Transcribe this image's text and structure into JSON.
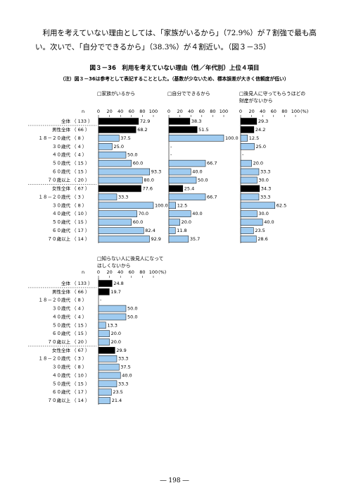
{
  "paragraph": "利用を考えていない理由としては、「家族がいるから」（72.9%）が７割強で最も高い。次いで、「自分でできるから」（38.3%）が４割近い。（図３－35）",
  "figure_title": "図３－36　利用を考えていない理由（性／年代別）上位４項目",
  "note": "（注）図３－36は参考として表記することとした。（基数が少ないため、標本誤差が大きく信頼度が低い）",
  "page_number": "― 198 ―",
  "chart_data": [
    {
      "type": "bar",
      "title": "□家族がいるから",
      "n_header": "n",
      "categories": [
        "全体",
        "男性全体",
        "１８－２０歳代",
        "３０歳代",
        "４０歳代",
        "５０歳代",
        "６０歳代",
        "７０歳以上",
        "女性全体",
        "１８－２０歳代",
        "３０歳代",
        "４０歳代",
        "５０歳代",
        "６０歳代",
        "７０歳以上"
      ],
      "n_labels": [
        "（ 133 ）",
        "（ 66 ）",
        "（ 8 ）",
        "（ 4 ）",
        "（ 4 ）",
        "（ 15 ）",
        "（ 15 ）",
        "（ 20 ）",
        "（ 67 ）",
        "（ 3 ）",
        "（ 8 ）",
        "（ 10 ）",
        "（ 15 ）",
        "（ 17 ）",
        "（ 14 ）"
      ],
      "values": [
        72.9,
        68.2,
        37.5,
        25.0,
        50.0,
        60.0,
        93.3,
        80.0,
        77.6,
        33.3,
        100.0,
        70.0,
        60.0,
        82.4,
        92.9
      ],
      "value_labels": [
        "72.9",
        "68.2",
        "37.5",
        "25.0",
        "50.0",
        "60.0",
        "93.3",
        "80.0",
        "77.6",
        "33.3",
        "100.0",
        "70.0",
        "60.0",
        "82.4",
        "92.9"
      ],
      "colors": [
        "#000000",
        "#000000",
        "#9fcbf0",
        "#9fcbf0",
        "#9fcbf0",
        "#9fcbf0",
        "#9fcbf0",
        "#9fcbf0",
        "#000000",
        "#9fcbf0",
        "#9fcbf0",
        "#9fcbf0",
        "#9fcbf0",
        "#9fcbf0",
        "#9fcbf0"
      ],
      "xlim": [
        0,
        100
      ],
      "xticks": [
        0,
        20,
        40,
        60,
        80,
        100
      ]
    },
    {
      "type": "bar",
      "title": "□自分でできるから",
      "values": [
        38.3,
        51.5,
        100.0,
        0,
        0,
        66.7,
        40.0,
        50.0,
        25.4,
        66.7,
        12.5,
        40.0,
        20.0,
        11.8,
        35.7
      ],
      "value_labels": [
        "38.3",
        "51.5",
        "100.0",
        "-",
        "-",
        "66.7",
        "40.0",
        "50.0",
        "25.4",
        "66.7",
        "12.5",
        "40.0",
        "20.0",
        "11.8",
        "35.7"
      ],
      "colors": [
        "#000000",
        "#000000",
        "#9fcbf0",
        "#9fcbf0",
        "#9fcbf0",
        "#9fcbf0",
        "#9fcbf0",
        "#9fcbf0",
        "#000000",
        "#9fcbf0",
        "#9fcbf0",
        "#9fcbf0",
        "#9fcbf0",
        "#9fcbf0",
        "#9fcbf0"
      ],
      "xlim": [
        0,
        100
      ],
      "xticks": [
        0,
        20,
        40,
        60,
        80,
        100
      ]
    },
    {
      "type": "bar",
      "title": "□後見人に守ってもらうほどの財産がないから",
      "values": [
        29.3,
        24.2,
        12.5,
        25.0,
        0,
        20.0,
        33.3,
        30.0,
        34.3,
        33.3,
        62.5,
        30.0,
        40.0,
        23.5,
        28.6
      ],
      "value_labels": [
        "29.3",
        "24.2",
        "12.5",
        "25.0",
        "-",
        "20.0",
        "33.3",
        "30.0",
        "34.3",
        "33.3",
        "62.5",
        "30.0",
        "40.0",
        "23.5",
        "28.6"
      ],
      "colors": [
        "#000000",
        "#000000",
        "#9fcbf0",
        "#9fcbf0",
        "#9fcbf0",
        "#9fcbf0",
        "#9fcbf0",
        "#9fcbf0",
        "#000000",
        "#9fcbf0",
        "#9fcbf0",
        "#9fcbf0",
        "#9fcbf0",
        "#9fcbf0",
        "#9fcbf0"
      ],
      "xlim": [
        0,
        100
      ],
      "xticks": [
        0,
        20,
        40,
        60,
        80,
        100
      ],
      "x_unit": "(%)"
    },
    {
      "type": "bar",
      "title": "□知らない人に後見人になってほしくないから",
      "n_header": "n",
      "categories": [
        "全体",
        "男性全体",
        "１８－２０歳代",
        "３０歳代",
        "４０歳代",
        "５０歳代",
        "６０歳代",
        "７０歳以上",
        "女性全体",
        "１８－２０歳代",
        "３０歳代",
        "４０歳代",
        "５０歳代",
        "６０歳代",
        "７０歳以上"
      ],
      "n_labels": [
        "（ 133 ）",
        "（ 66 ）",
        "（ 8 ）",
        "（ 4 ）",
        "（ 4 ）",
        "（ 15 ）",
        "（ 15 ）",
        "（ 20 ）",
        "（ 67 ）",
        "（ 3 ）",
        "（ 8 ）",
        "（ 10 ）",
        "（ 15 ）",
        "（ 17 ）",
        "（ 14 ）"
      ],
      "values": [
        24.8,
        19.7,
        0,
        50.0,
        50.0,
        13.3,
        20.0,
        20.0,
        29.9,
        33.3,
        37.5,
        40.0,
        33.3,
        23.5,
        21.4
      ],
      "value_labels": [
        "24.8",
        "19.7",
        "-",
        "50.0",
        "50.0",
        "13.3",
        "20.0",
        "20.0",
        "29.9",
        "33.3",
        "37.5",
        "40.0",
        "33.3",
        "23.5",
        "21.4"
      ],
      "colors": [
        "#000000",
        "#000000",
        "#9fcbf0",
        "#9fcbf0",
        "#9fcbf0",
        "#9fcbf0",
        "#9fcbf0",
        "#9fcbf0",
        "#000000",
        "#9fcbf0",
        "#9fcbf0",
        "#9fcbf0",
        "#9fcbf0",
        "#9fcbf0",
        "#9fcbf0"
      ],
      "xlim": [
        0,
        100
      ],
      "xticks": [
        0,
        20,
        40,
        60,
        80,
        100
      ],
      "x_unit": "(%)"
    }
  ]
}
